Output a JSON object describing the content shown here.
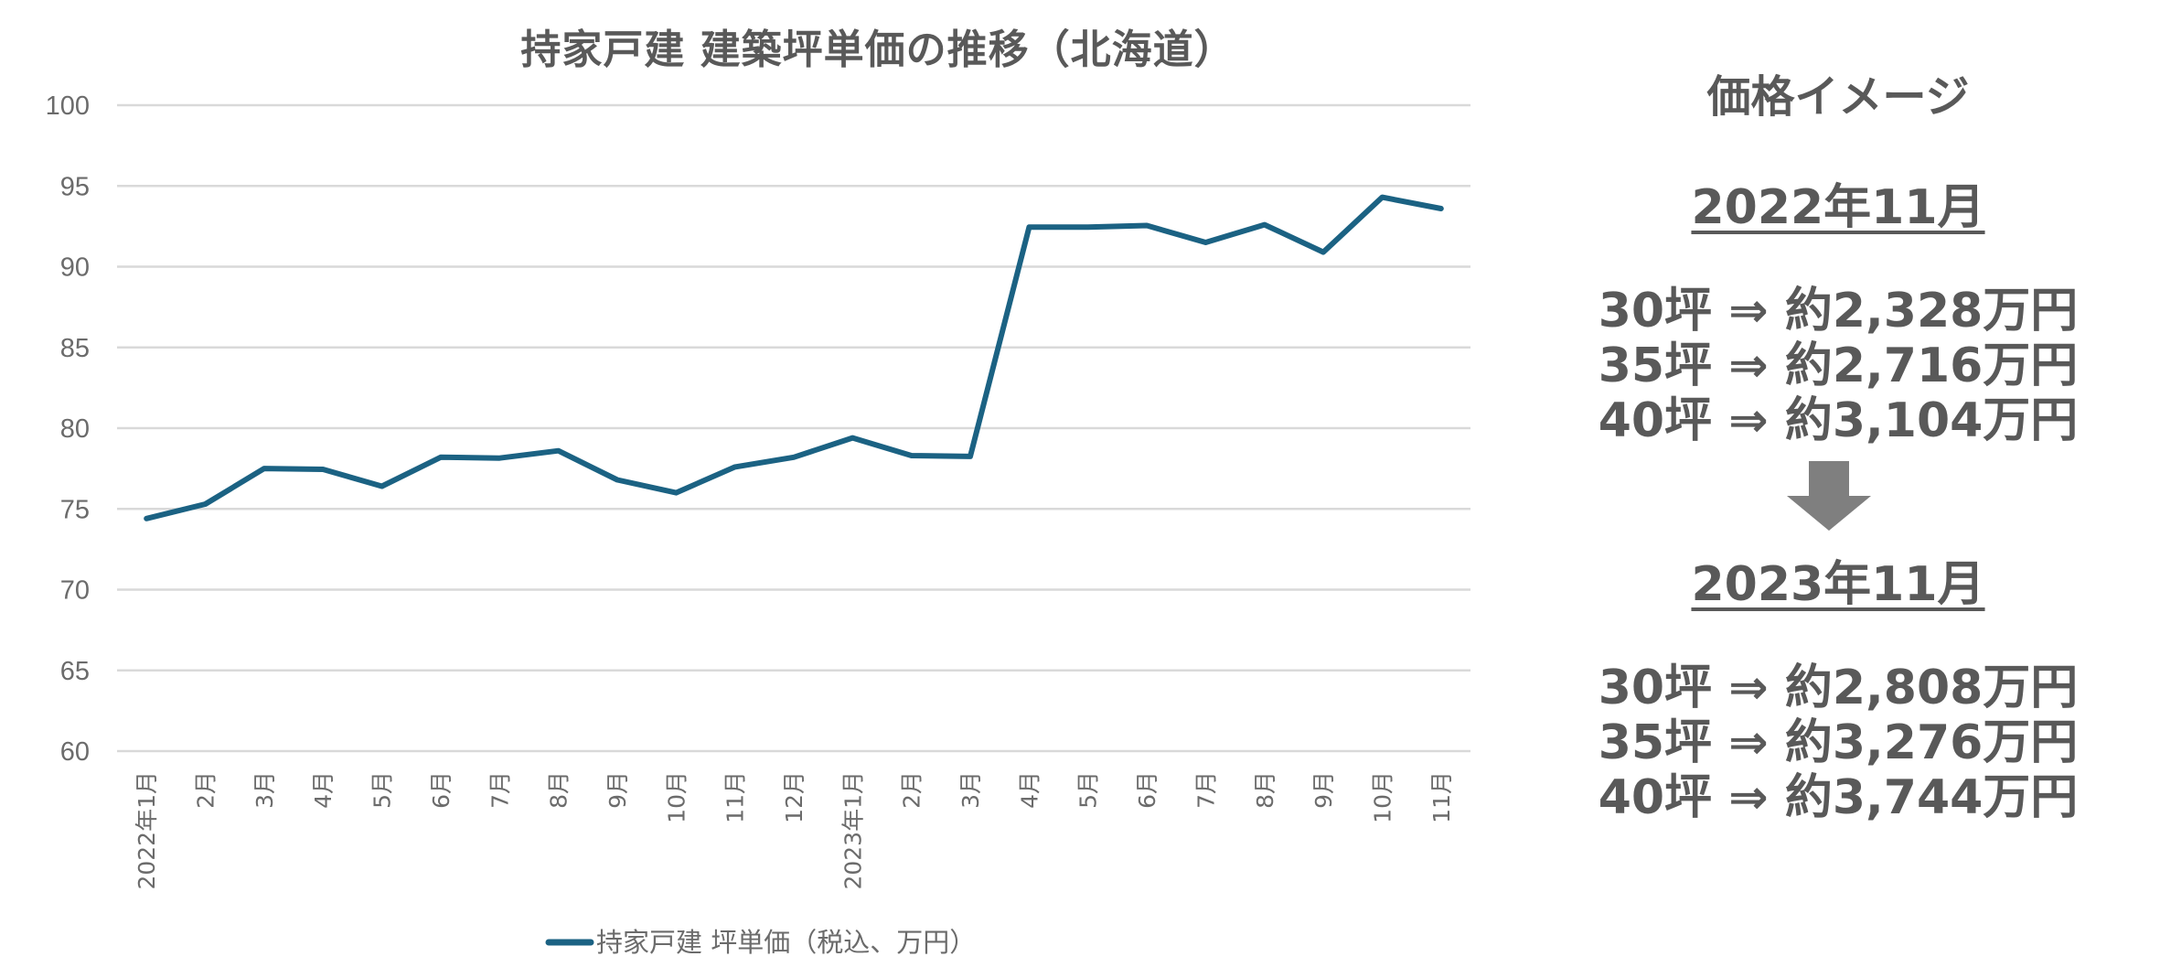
{
  "chart": {
    "title": "持家戸建 建築坪単価の推移（北海道）",
    "legend_label": "持家戸建 坪単価（税込、万円）",
    "line_color": "#1b6283",
    "grid_color": "#d9d9d9",
    "y_ticks": [
      "100",
      "95",
      "90",
      "85",
      "80",
      "75",
      "70",
      "65",
      "60"
    ],
    "x_ticks": [
      "2022年1月",
      "2月",
      "3月",
      "4月",
      "5月",
      "6月",
      "7月",
      "8月",
      "9月",
      "10月",
      "11月",
      "12月",
      "2023年1月",
      "2月",
      "3月",
      "4月",
      "5月",
      "6月",
      "7月",
      "8月",
      "9月",
      "10月",
      "11月"
    ]
  },
  "chart_data": {
    "type": "line",
    "title": "持家戸建 建築坪単価の推移（北海道）",
    "xlabel": "",
    "ylabel": "",
    "ylim": [
      60,
      100
    ],
    "yticks": [
      60,
      65,
      70,
      75,
      80,
      85,
      90,
      95,
      100
    ],
    "grid": true,
    "legend_position": "bottom",
    "categories": [
      "2022年1月",
      "2月",
      "3月",
      "4月",
      "5月",
      "6月",
      "7月",
      "8月",
      "9月",
      "10月",
      "11月",
      "12月",
      "2023年1月",
      "2月",
      "3月",
      "4月",
      "5月",
      "6月",
      "7月",
      "8月",
      "9月",
      "10月",
      "11月"
    ],
    "series": [
      {
        "name": "持家戸建 坪単価（税込、万円）",
        "color": "#1b6283",
        "values": [
          74.4,
          75.3,
          77.5,
          77.45,
          76.4,
          78.2,
          78.15,
          78.6,
          76.8,
          76.0,
          77.6,
          78.2,
          79.4,
          78.3,
          78.25,
          92.45,
          92.45,
          92.55,
          91.5,
          92.6,
          90.9,
          94.3,
          93.6
        ]
      }
    ]
  },
  "side_panel": {
    "heading": "価格イメージ",
    "before": {
      "period": "2022年11月",
      "lines": [
        "30坪 ⇒ 約2,328万円",
        "35坪 ⇒ 約2,716万円",
        "40坪 ⇒ 約3,104万円"
      ]
    },
    "arrow_icon": "down-arrow",
    "after": {
      "period": "2023年11月",
      "lines": [
        "30坪 ⇒ 約2,808万円",
        "35坪 ⇒ 約3,276万円",
        "40坪 ⇒ 約3,744万円"
      ]
    }
  }
}
